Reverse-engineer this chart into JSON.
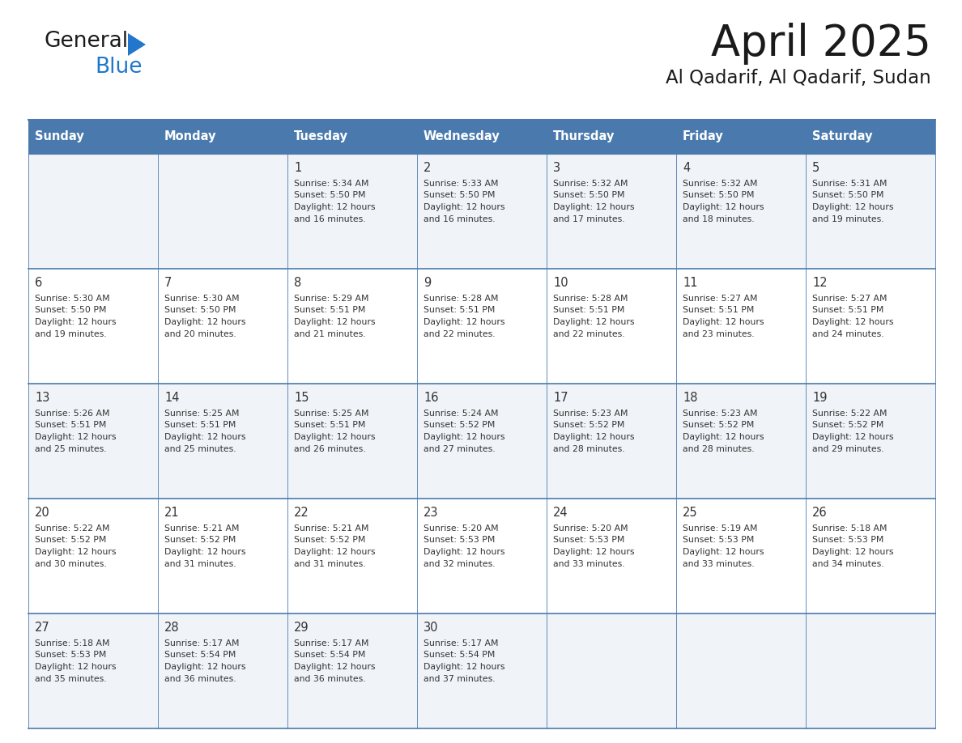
{
  "title": "April 2025",
  "subtitle": "Al Qadarif, Al Qadarif, Sudan",
  "header_bg_color": "#4a7aad",
  "header_text_color": "#ffffff",
  "day_names": [
    "Sunday",
    "Monday",
    "Tuesday",
    "Wednesday",
    "Thursday",
    "Friday",
    "Saturday"
  ],
  "row_colors": [
    "#f0f4f8",
    "#ffffff"
  ],
  "border_color": "#4a7aad",
  "text_color": "#333333",
  "days": [
    {
      "day": 1,
      "col": 2,
      "row": 0,
      "sunrise": "5:34 AM",
      "sunset": "5:50 PM",
      "daylight": "12 hours and 16 minutes"
    },
    {
      "day": 2,
      "col": 3,
      "row": 0,
      "sunrise": "5:33 AM",
      "sunset": "5:50 PM",
      "daylight": "12 hours and 16 minutes"
    },
    {
      "day": 3,
      "col": 4,
      "row": 0,
      "sunrise": "5:32 AM",
      "sunset": "5:50 PM",
      "daylight": "12 hours and 17 minutes"
    },
    {
      "day": 4,
      "col": 5,
      "row": 0,
      "sunrise": "5:32 AM",
      "sunset": "5:50 PM",
      "daylight": "12 hours and 18 minutes"
    },
    {
      "day": 5,
      "col": 6,
      "row": 0,
      "sunrise": "5:31 AM",
      "sunset": "5:50 PM",
      "daylight": "12 hours and 19 minutes"
    },
    {
      "day": 6,
      "col": 0,
      "row": 1,
      "sunrise": "5:30 AM",
      "sunset": "5:50 PM",
      "daylight": "12 hours and 19 minutes"
    },
    {
      "day": 7,
      "col": 1,
      "row": 1,
      "sunrise": "5:30 AM",
      "sunset": "5:50 PM",
      "daylight": "12 hours and 20 minutes"
    },
    {
      "day": 8,
      "col": 2,
      "row": 1,
      "sunrise": "5:29 AM",
      "sunset": "5:51 PM",
      "daylight": "12 hours and 21 minutes"
    },
    {
      "day": 9,
      "col": 3,
      "row": 1,
      "sunrise": "5:28 AM",
      "sunset": "5:51 PM",
      "daylight": "12 hours and 22 minutes"
    },
    {
      "day": 10,
      "col": 4,
      "row": 1,
      "sunrise": "5:28 AM",
      "sunset": "5:51 PM",
      "daylight": "12 hours and 22 minutes"
    },
    {
      "day": 11,
      "col": 5,
      "row": 1,
      "sunrise": "5:27 AM",
      "sunset": "5:51 PM",
      "daylight": "12 hours and 23 minutes"
    },
    {
      "day": 12,
      "col": 6,
      "row": 1,
      "sunrise": "5:27 AM",
      "sunset": "5:51 PM",
      "daylight": "12 hours and 24 minutes"
    },
    {
      "day": 13,
      "col": 0,
      "row": 2,
      "sunrise": "5:26 AM",
      "sunset": "5:51 PM",
      "daylight": "12 hours and 25 minutes"
    },
    {
      "day": 14,
      "col": 1,
      "row": 2,
      "sunrise": "5:25 AM",
      "sunset": "5:51 PM",
      "daylight": "12 hours and 25 minutes"
    },
    {
      "day": 15,
      "col": 2,
      "row": 2,
      "sunrise": "5:25 AM",
      "sunset": "5:51 PM",
      "daylight": "12 hours and 26 minutes"
    },
    {
      "day": 16,
      "col": 3,
      "row": 2,
      "sunrise": "5:24 AM",
      "sunset": "5:52 PM",
      "daylight": "12 hours and 27 minutes"
    },
    {
      "day": 17,
      "col": 4,
      "row": 2,
      "sunrise": "5:23 AM",
      "sunset": "5:52 PM",
      "daylight": "12 hours and 28 minutes"
    },
    {
      "day": 18,
      "col": 5,
      "row": 2,
      "sunrise": "5:23 AM",
      "sunset": "5:52 PM",
      "daylight": "12 hours and 28 minutes"
    },
    {
      "day": 19,
      "col": 6,
      "row": 2,
      "sunrise": "5:22 AM",
      "sunset": "5:52 PM",
      "daylight": "12 hours and 29 minutes"
    },
    {
      "day": 20,
      "col": 0,
      "row": 3,
      "sunrise": "5:22 AM",
      "sunset": "5:52 PM",
      "daylight": "12 hours and 30 minutes"
    },
    {
      "day": 21,
      "col": 1,
      "row": 3,
      "sunrise": "5:21 AM",
      "sunset": "5:52 PM",
      "daylight": "12 hours and 31 minutes"
    },
    {
      "day": 22,
      "col": 2,
      "row": 3,
      "sunrise": "5:21 AM",
      "sunset": "5:52 PM",
      "daylight": "12 hours and 31 minutes"
    },
    {
      "day": 23,
      "col": 3,
      "row": 3,
      "sunrise": "5:20 AM",
      "sunset": "5:53 PM",
      "daylight": "12 hours and 32 minutes"
    },
    {
      "day": 24,
      "col": 4,
      "row": 3,
      "sunrise": "5:20 AM",
      "sunset": "5:53 PM",
      "daylight": "12 hours and 33 minutes"
    },
    {
      "day": 25,
      "col": 5,
      "row": 3,
      "sunrise": "5:19 AM",
      "sunset": "5:53 PM",
      "daylight": "12 hours and 33 minutes"
    },
    {
      "day": 26,
      "col": 6,
      "row": 3,
      "sunrise": "5:18 AM",
      "sunset": "5:53 PM",
      "daylight": "12 hours and 34 minutes"
    },
    {
      "day": 27,
      "col": 0,
      "row": 4,
      "sunrise": "5:18 AM",
      "sunset": "5:53 PM",
      "daylight": "12 hours and 35 minutes"
    },
    {
      "day": 28,
      "col": 1,
      "row": 4,
      "sunrise": "5:17 AM",
      "sunset": "5:54 PM",
      "daylight": "12 hours and 36 minutes"
    },
    {
      "day": 29,
      "col": 2,
      "row": 4,
      "sunrise": "5:17 AM",
      "sunset": "5:54 PM",
      "daylight": "12 hours and 36 minutes"
    },
    {
      "day": 30,
      "col": 3,
      "row": 4,
      "sunrise": "5:17 AM",
      "sunset": "5:54 PM",
      "daylight": "12 hours and 37 minutes"
    }
  ],
  "num_rows": 5,
  "num_cols": 7,
  "logo_general_color": "#1a1a1a",
  "logo_blue_color": "#2277cc",
  "logo_triangle_color": "#2277cc",
  "title_color": "#1a1a1a",
  "subtitle_color": "#1a1a1a"
}
